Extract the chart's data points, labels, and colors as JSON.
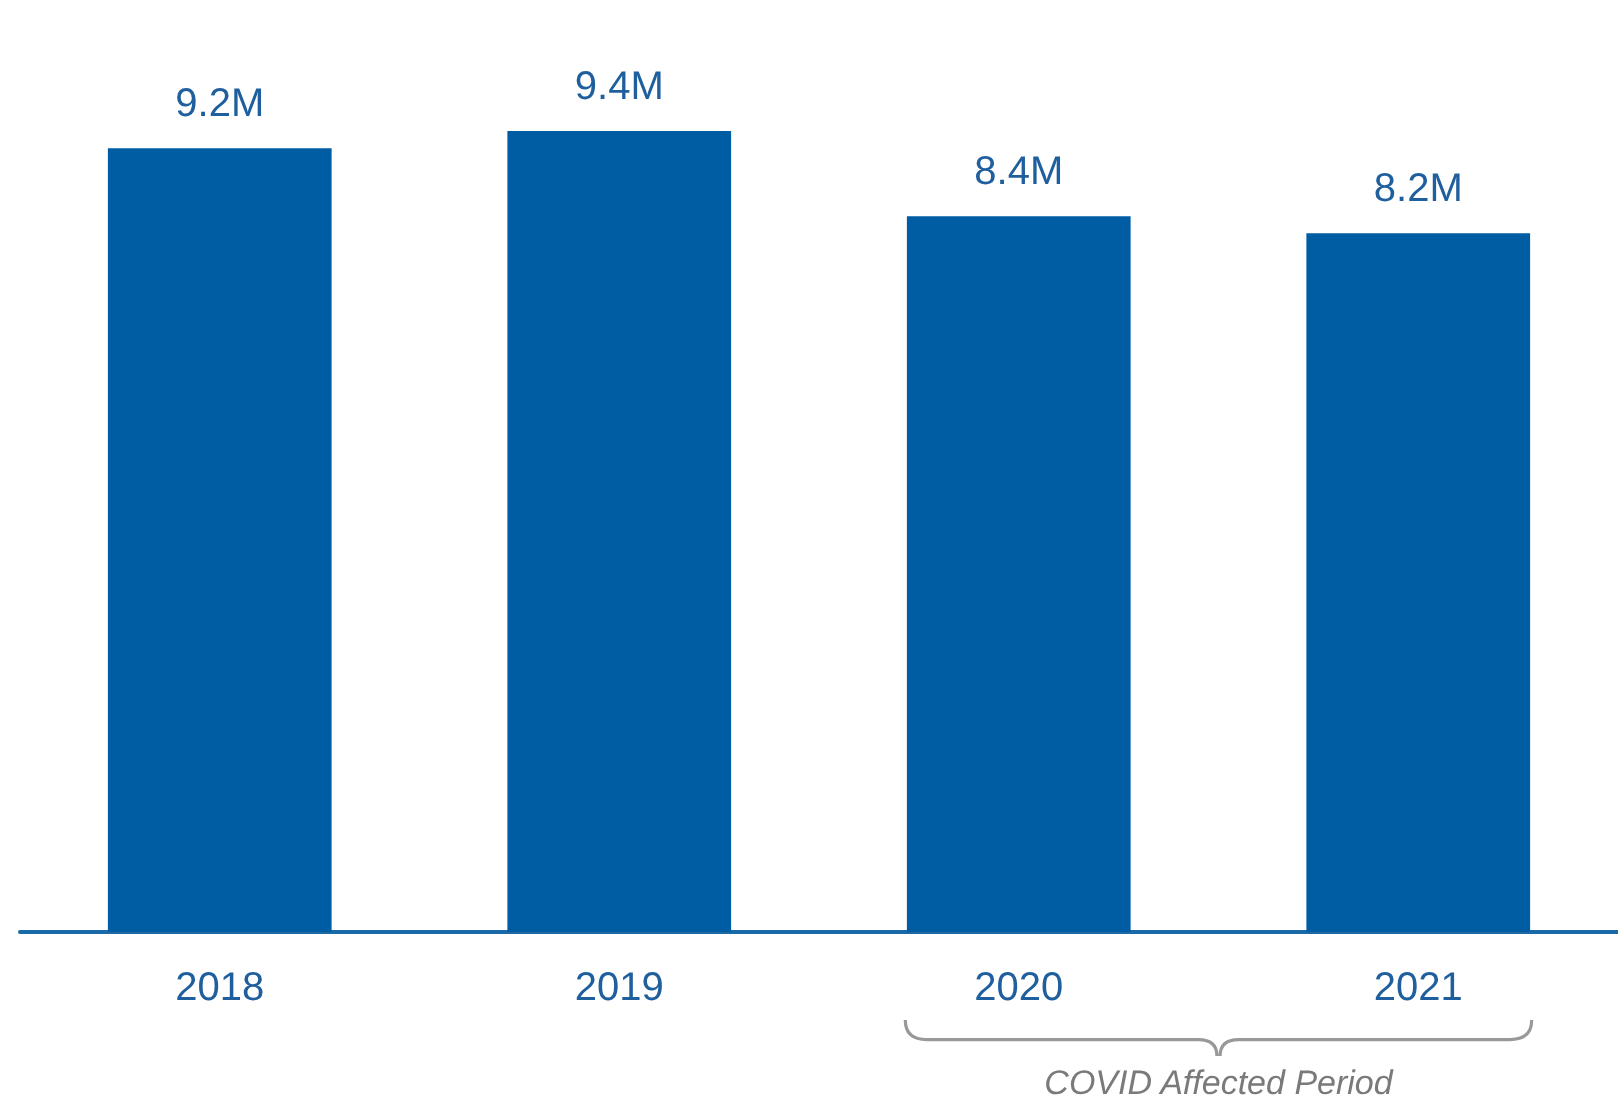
{
  "chart_data": {
    "type": "bar",
    "categories": [
      "2018",
      "2019",
      "2020",
      "2021"
    ],
    "values": [
      9.2,
      9.4,
      8.4,
      8.2
    ],
    "value_labels": [
      "9.2M",
      "9.4M",
      "8.4M",
      "8.2M"
    ],
    "color": "#005ca3",
    "annotations": [
      "COVID Affected Period"
    ]
  }
}
